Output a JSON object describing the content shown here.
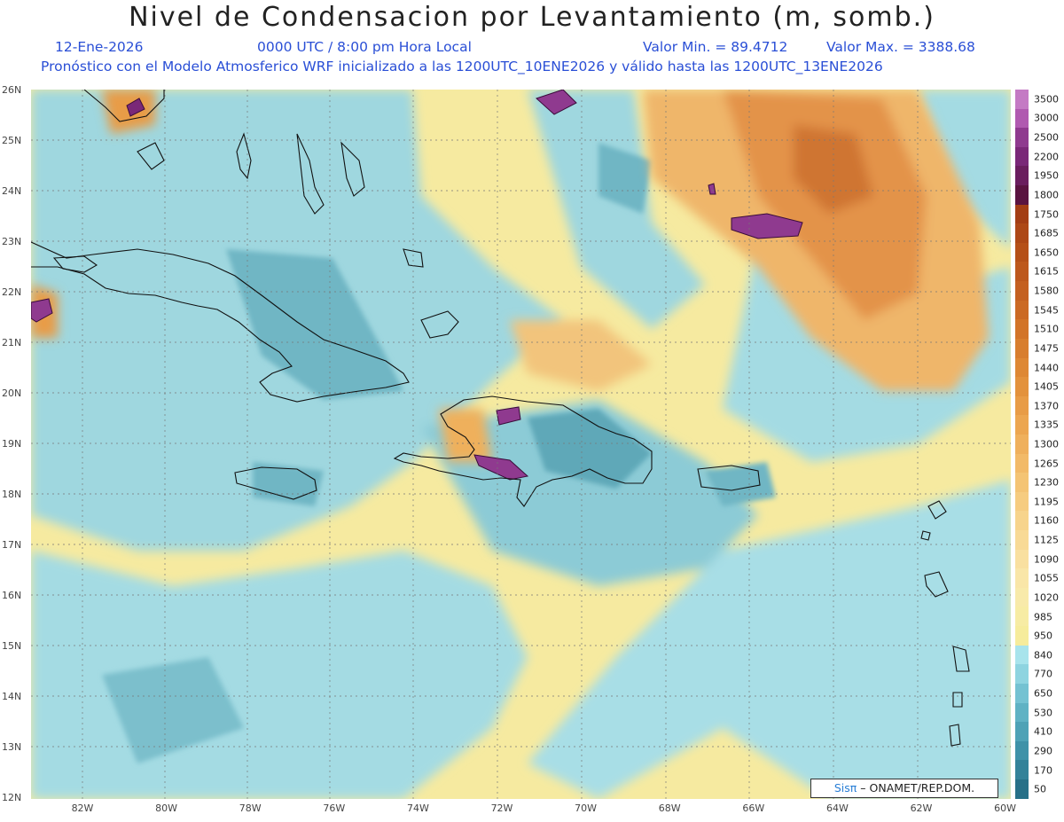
{
  "header": {
    "title": "Nivel de Condensacion por Levantamiento (m, somb.)",
    "date": "12-Ene-2026",
    "time": "0000 UTC / 8:00 pm Hora Local",
    "min_value": "Valor Min. = 89.4712",
    "max_value": "Valor Max. = 3388.68",
    "model_line": "Pronóstico con el Modelo Atmosferico WRF inicializado a las 1200UTC_10ENE2026 y válido hasta las  1200UTC_13ENE2026"
  },
  "axes": {
    "lat_labels": [
      "26N",
      "25N",
      "24N",
      "23N",
      "22N",
      "21N",
      "20N",
      "19N",
      "18N",
      "17N",
      "16N",
      "15N",
      "14N",
      "13N",
      "12N"
    ],
    "lon_labels": [
      "82W",
      "80W",
      "78W",
      "76W",
      "74W",
      "72W",
      "70W",
      "68W",
      "66W",
      "64W",
      "62W",
      "60W"
    ]
  },
  "colorbar": {
    "levels": [
      "3500",
      "3000",
      "2500",
      "2200",
      "1950",
      "1800",
      "1750",
      "1685",
      "1650",
      "1615",
      "1580",
      "1545",
      "1510",
      "1475",
      "1440",
      "1405",
      "1370",
      "1335",
      "1300",
      "1265",
      "1230",
      "1195",
      "1160",
      "1125",
      "1090",
      "1055",
      "1020",
      "985",
      "950",
      "840",
      "770",
      "650",
      "530",
      "410",
      "290",
      "170",
      "50"
    ],
    "colors": [
      "#c47ac4",
      "#b05ab0",
      "#8f3a8f",
      "#7a2878",
      "#6a1e5e",
      "#5a1440",
      "#a33e14",
      "#ad4816",
      "#b55018",
      "#bd581c",
      "#c46020",
      "#cb6a24",
      "#d27428",
      "#d87e2e",
      "#de8834",
      "#e3923c",
      "#e89c46",
      "#eca650",
      "#efb05c",
      "#f2ba68",
      "#f4c474",
      "#f6cc80",
      "#f7d48c",
      "#f8da96",
      "#f9e0a0",
      "#f9e6a8",
      "#f8eaaa",
      "#f7eca4",
      "#f6ec9c",
      "#a8e4ec",
      "#8ed4e0",
      "#74c2d2",
      "#5fb2c4",
      "#4ea2b6",
      "#3f92a8",
      "#338299",
      "#277088"
    ]
  },
  "credit": {
    "logo": "Sisπ",
    "text": "– ONAMET/REP.DOM."
  }
}
